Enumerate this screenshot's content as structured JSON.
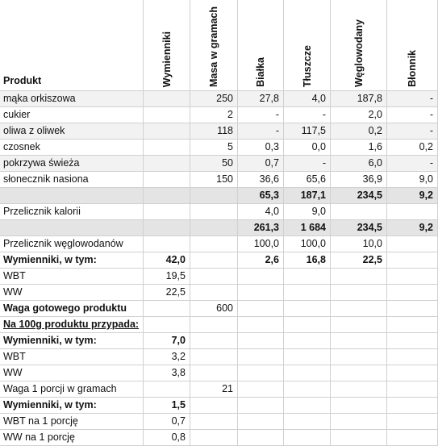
{
  "header": [
    "Produkt",
    "Wymienniki",
    "Masa w gramach",
    "Białka",
    "Tłuszcze",
    "Węglowodany",
    "Błonnik"
  ],
  "rows": [
    [
      "mąka orkiszowa",
      null,
      "250",
      "27,8",
      "4,0",
      "187,8",
      "-"
    ],
    [
      "cukier",
      null,
      "2",
      "-",
      "-",
      "2,0",
      "-"
    ],
    [
      "oliwa z oliwek",
      null,
      "118",
      "-",
      "117,5",
      "0,2",
      "-"
    ],
    [
      "czosnek",
      null,
      "5",
      "0,3",
      "0,0",
      "1,6",
      "0,2"
    ],
    [
      "pokrzywa świeża",
      null,
      "50",
      "0,7",
      "-",
      "6,0",
      "-"
    ],
    [
      "słonecznik nasiona",
      null,
      "150",
      "36,6",
      "65,6",
      "36,9",
      "9,0"
    ],
    [
      null,
      null,
      null,
      "65,3",
      "187,1",
      "234,5",
      "9,2"
    ],
    [
      "Przelicznik kalorii",
      null,
      null,
      "4,0",
      "9,0",
      null,
      null
    ],
    [
      null,
      null,
      null,
      "261,3",
      "1 684",
      "234,5",
      "9,2"
    ],
    [
      "Przelicznik węglowodanów",
      null,
      null,
      "100,0",
      "100,0",
      "10,0",
      null
    ],
    [
      "Wymienniki, w tym:",
      "42,0",
      null,
      "2,6",
      "16,8",
      "22,5",
      null
    ],
    [
      "WBT",
      "19,5",
      null,
      null,
      null,
      null,
      null
    ],
    [
      "WW",
      "22,5",
      null,
      null,
      null,
      null,
      null
    ],
    [
      "Waga gotowego produktu",
      null,
      "600",
      null,
      null,
      null,
      null
    ],
    [
      "Na 100g produktu przypada:",
      null,
      null,
      null,
      null,
      null,
      null
    ],
    [
      "Wymienniki, w tym:",
      "7,0",
      null,
      null,
      null,
      null,
      null
    ],
    [
      "WBT",
      "3,2",
      null,
      null,
      null,
      null,
      null
    ],
    [
      "WW",
      "3,8",
      null,
      null,
      null,
      null,
      null
    ],
    [
      "Waga 1 porcji w gramach",
      null,
      "21",
      null,
      null,
      null,
      null
    ],
    [
      "Wymienniki, w tym:",
      "1,5",
      null,
      null,
      null,
      null,
      null
    ],
    [
      "WBT na 1 porcję",
      "0,7",
      null,
      null,
      null,
      null,
      null
    ],
    [
      "WW na 1 porcję",
      "0,8",
      null,
      null,
      null,
      null,
      null
    ]
  ]
}
